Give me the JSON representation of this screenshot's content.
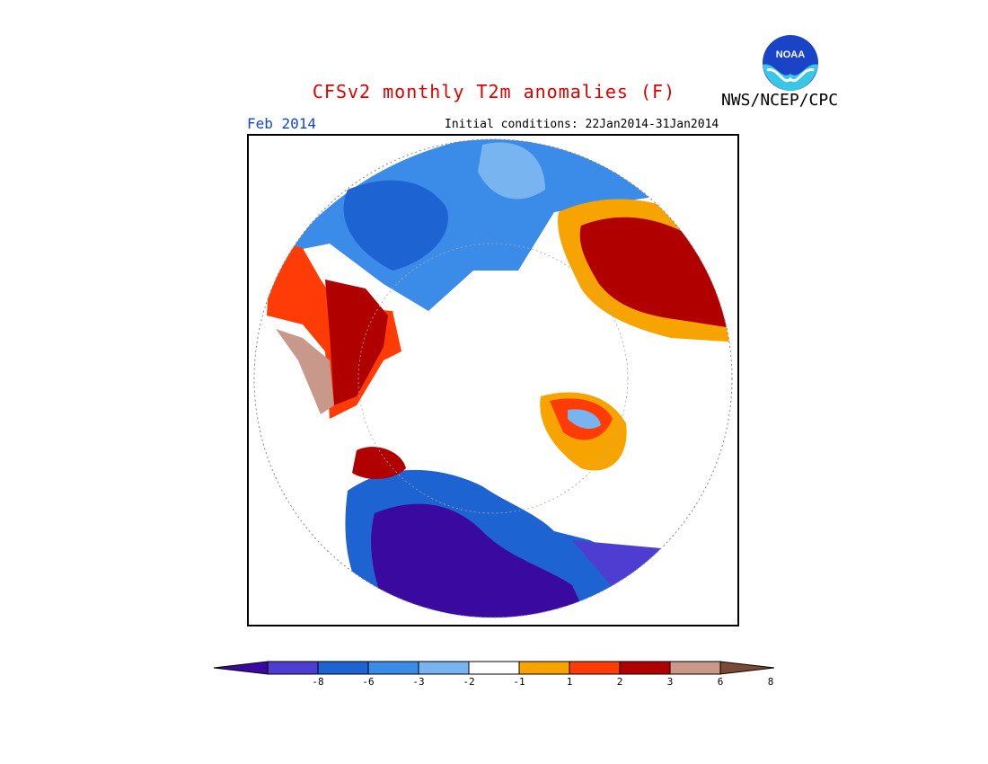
{
  "header": {
    "title": "CFSv2 monthly T2m anomalies (F)",
    "title_color": "#dd0000",
    "agency": "NWS/NCEP/CPC",
    "logo_text": "NOAA"
  },
  "subheader": {
    "month": "Feb 2014",
    "month_color": "#1144dd",
    "initial_conditions": "Initial conditions: 22Jan2014-31Jan2014"
  },
  "map": {
    "projection": "north polar stereographic",
    "units": "F"
  },
  "colorbar": {
    "labels": [
      "-8",
      "-6",
      "-3",
      "-2",
      "-1",
      "1",
      "2",
      "3",
      "6",
      "8"
    ],
    "colors": [
      "#3a0aa0",
      "#4d3ed1",
      "#1e63d2",
      "#3b8ce8",
      "#78b5f0",
      "#ffffff",
      "#f7a300",
      "#ff3c05",
      "#b00000",
      "#c8998a",
      "#7a4a35"
    ]
  }
}
